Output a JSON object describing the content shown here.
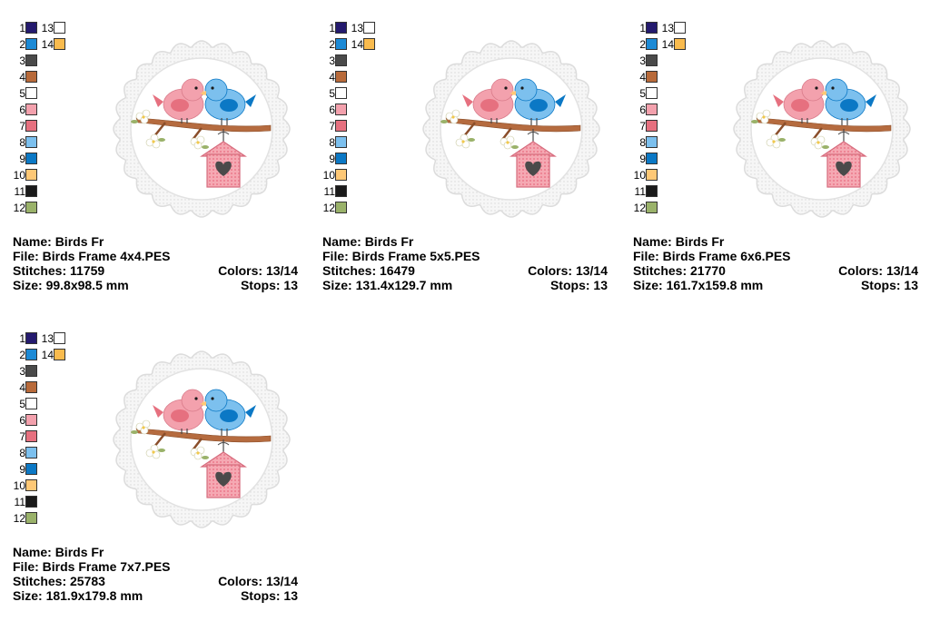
{
  "palette_colors": [
    "#241a6e",
    "#1c8ad6",
    "#4a4a4a",
    "#b86a3a",
    "#ffffff",
    "#f3a1ad",
    "#e6707f",
    "#7cc0ee",
    "#0b78c5",
    "#fec876",
    "#1a1a1a",
    "#9ab26a",
    "#ffffff",
    "#f9bb4e"
  ],
  "labels": {
    "name": "Name:",
    "file": "File:",
    "stitches": "Stitches:",
    "size": "Size:",
    "colors": "Colors:",
    "stops": "Stops:"
  },
  "cards": [
    {
      "name": "Birds Fr",
      "file": "Birds Frame 4x4.PES",
      "stitches": "11759",
      "colors": "13/14",
      "size": "99.8x98.5 mm",
      "stops": "13"
    },
    {
      "name": "Birds Fr",
      "file": "Birds Frame 5x5.PES",
      "stitches": "16479",
      "colors": "13/14",
      "size": "131.4x129.7 mm",
      "stops": "13"
    },
    {
      "name": "Birds Fr",
      "file": "Birds Frame 6x6.PES",
      "stitches": "21770",
      "colors": "13/14",
      "size": "161.7x159.8 mm",
      "stops": "13"
    },
    {
      "name": "Birds Fr",
      "file": "Birds Frame 7x7.PES",
      "stitches": "25783",
      "colors": "13/14",
      "size": "181.9x179.8 mm",
      "stops": "13"
    }
  ]
}
